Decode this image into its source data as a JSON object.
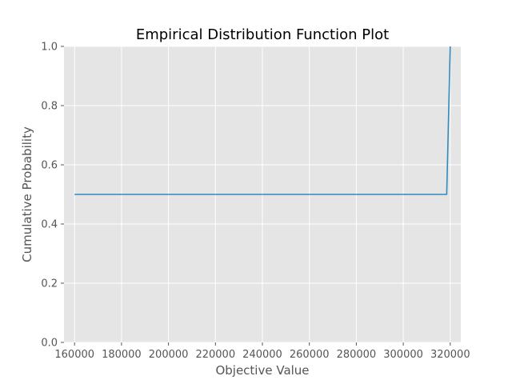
{
  "chart_data": {
    "type": "line",
    "title": "Empirical Distribution Function Plot",
    "xlabel": "Objective Value",
    "ylabel": "Cumulative Probability",
    "xlim": [
      155500,
      324500
    ],
    "ylim": [
      0,
      1
    ],
    "xticks": [
      160000,
      180000,
      200000,
      220000,
      240000,
      260000,
      280000,
      300000,
      320000
    ],
    "xtick_labels": [
      "160000",
      "180000",
      "200000",
      "220000",
      "240000",
      "260000",
      "280000",
      "300000",
      "320000"
    ],
    "yticks": [
      0,
      0.2,
      0.4,
      0.6,
      0.8,
      1.0
    ],
    "ytick_labels": [
      "0.0",
      "0.2",
      "0.4",
      "0.6",
      "0.8",
      "1.0"
    ],
    "grid": true,
    "series": [
      {
        "color": "#348abd",
        "x": [
          160000,
          318500,
          320000
        ],
        "y": [
          0.5,
          0.5,
          1.0
        ]
      }
    ]
  },
  "colors": {
    "plot_background": "#e5e5e5",
    "grid": "#ffffff",
    "line": "#348abd"
  }
}
